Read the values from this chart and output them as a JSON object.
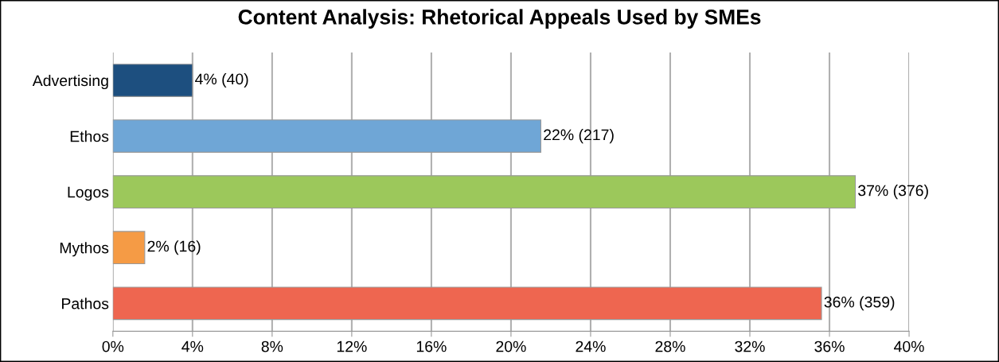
{
  "chart_data": {
    "type": "bar",
    "orientation": "horizontal",
    "title": "Content Analysis: Rhetorical Appeals Used by SMEs",
    "categories": [
      "Advertising",
      "Ethos",
      "Logos",
      "Mythos",
      "Pathos"
    ],
    "values": [
      4.0,
      21.5,
      37.3,
      1.6,
      35.6
    ],
    "colors": [
      "#1d4f7f",
      "#6fa6d6",
      "#9cc85b",
      "#f59b45",
      "#ee6650"
    ],
    "value_labels": [
      "4% (40)",
      "22% (217)",
      "37% (376)",
      "2% (16)",
      "36% (359)"
    ],
    "xlim": [
      0,
      40
    ],
    "xticks": [
      {
        "value": 0,
        "label": "0%"
      },
      {
        "value": 4,
        "label": "4%"
      },
      {
        "value": 8,
        "label": "8%"
      },
      {
        "value": 12,
        "label": "12%"
      },
      {
        "value": 16,
        "label": "16%"
      },
      {
        "value": 20,
        "label": "20%"
      },
      {
        "value": 24,
        "label": "24%"
      },
      {
        "value": 28,
        "label": "28%"
      },
      {
        "value": 32,
        "label": "32%"
      },
      {
        "value": 36,
        "label": "36%"
      },
      {
        "value": 40,
        "label": "40%"
      }
    ],
    "grid": "x",
    "legend": false
  }
}
